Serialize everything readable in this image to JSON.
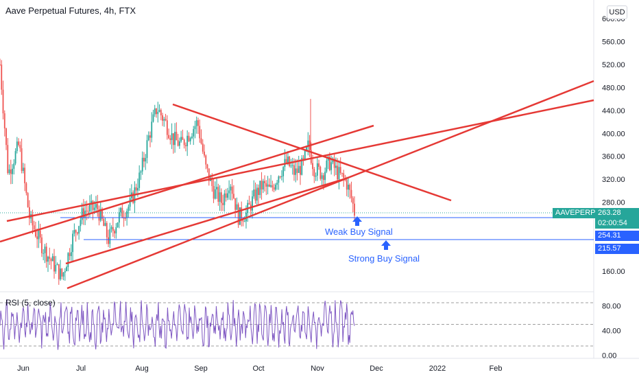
{
  "header": {
    "title": "Aave Perpetual Futures, 4h, FTX",
    "currency": "USD"
  },
  "chart_data": {
    "type": "candlestick",
    "symbol": "AAVEPERP",
    "ylim": [
      130,
      620
    ],
    "price_ticks": [
      "600.00",
      "560.00",
      "520.00",
      "480.00",
      "440.00",
      "400.00",
      "360.00",
      "320.00",
      "280.00",
      "160.00"
    ],
    "x_ticks": [
      "Jun",
      "Jul",
      "Aug",
      "Sep",
      "Oct",
      "Nov",
      "Dec",
      "2022",
      "Feb"
    ],
    "price_path": [
      [
        0,
        520
      ],
      [
        0.03,
        330
      ],
      [
        0.07,
        380
      ],
      [
        0.11,
        250
      ],
      [
        0.16,
        200
      ],
      [
        0.2,
        170
      ],
      [
        0.23,
        150
      ],
      [
        0.27,
        220
      ],
      [
        0.31,
        265
      ],
      [
        0.36,
        270
      ],
      [
        0.4,
        215
      ],
      [
        0.44,
        255
      ],
      [
        0.48,
        275
      ],
      [
        0.52,
        330
      ],
      [
        0.55,
        395
      ],
      [
        0.58,
        445
      ],
      [
        0.61,
        420
      ],
      [
        0.64,
        390
      ],
      [
        0.67,
        380
      ],
      [
        0.7,
        400
      ],
      [
        0.73,
        420
      ],
      [
        0.76,
        340
      ],
      [
        0.79,
        300
      ],
      [
        0.82,
        280
      ],
      [
        0.85,
        320
      ],
      [
        0.88,
        255
      ],
      [
        0.91,
        260
      ],
      [
        0.94,
        290
      ],
      [
        0.97,
        310
      ],
      [
        1.0,
        300
      ],
      [
        1.03,
        330
      ],
      [
        1.06,
        350
      ],
      [
        1.09,
        330
      ],
      [
        1.12,
        345
      ],
      [
        1.14,
        380
      ],
      [
        1.16,
        340
      ],
      [
        1.19,
        330
      ],
      [
        1.22,
        350
      ],
      [
        1.25,
        330
      ],
      [
        1.28,
        315
      ],
      [
        1.3,
        285
      ],
      [
        1.31,
        263
      ]
    ],
    "current_price": {
      "label": "263.28",
      "timer": "02:00:54"
    },
    "levels": [
      {
        "value": "254.31",
        "name": "Weak Buy Signal",
        "price": 254.31
      },
      {
        "value": "215.57",
        "name": "Strong Buy Signal",
        "price": 215.57
      }
    ],
    "rsi": {
      "label": "RSI (5, close)",
      "ticks": [
        "80.00",
        "40.00",
        "0.00"
      ],
      "levels": [
        85,
        50,
        15
      ]
    }
  },
  "colors": {
    "trendline": "#e53935",
    "level_line": "#2962ff",
    "bull_candle": "#26a69a",
    "bear_candle": "#ef5350",
    "rsi_line": "#7e57c2",
    "current_price_bg": "#26a69a",
    "symbol_bg": "#26a69a",
    "level_bg": "#2962ff"
  }
}
